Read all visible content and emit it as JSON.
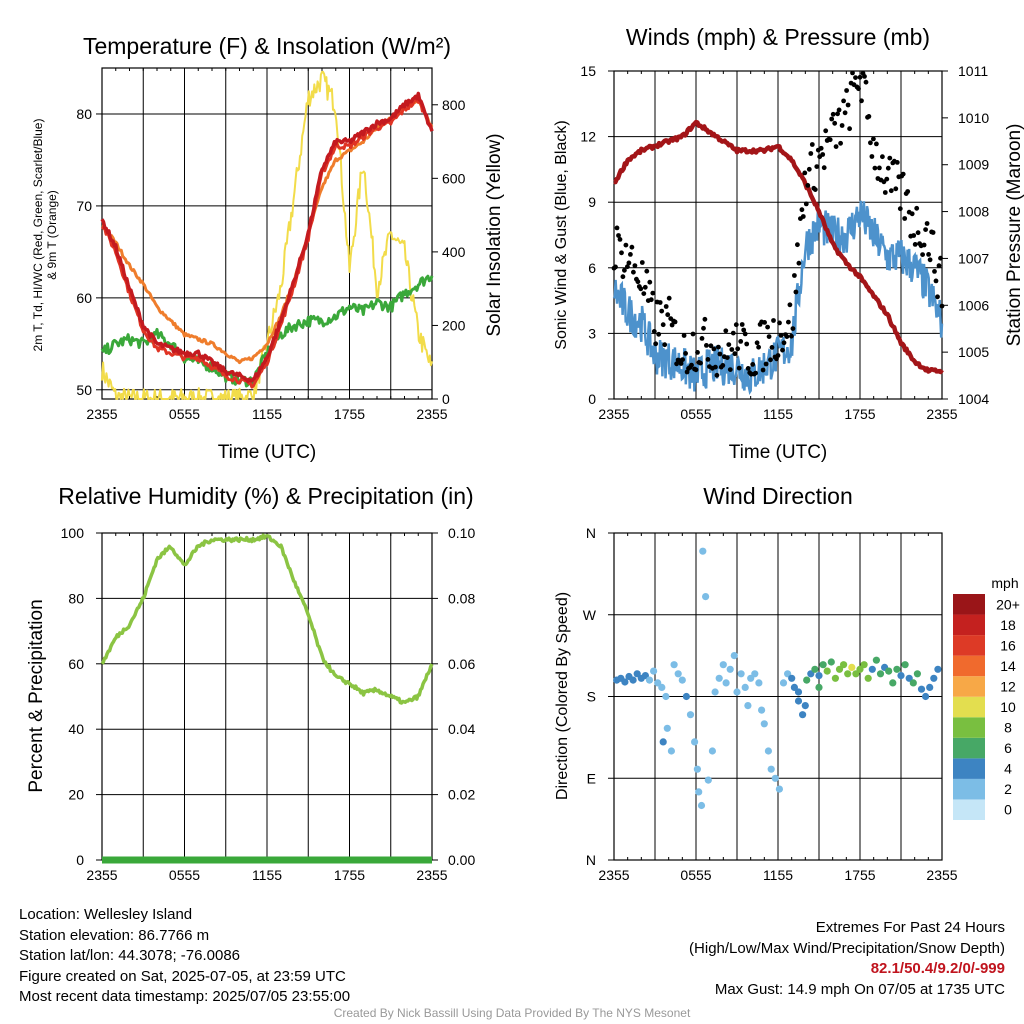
{
  "colors": {
    "t2m": "#c41a1f",
    "twc": "#e03424",
    "t9m": "#ef7d2c",
    "td": "#3aa83a",
    "solar": "#f2dc4a",
    "wind": "#4d92cc",
    "gust": "#000000",
    "pressure": "#a31518",
    "rh": "#8bc443",
    "precip": "#3aa83a"
  },
  "panels": {
    "temp": {
      "title": "Temperature (F) & Insolation (W/m²)",
      "ylabel_left_line1": "2m T, Td, HI/WC (Red, Green, Scarlet/Blue)",
      "ylabel_left_line2": "& 9m T (Orange)",
      "ylabel_right": "Solar Insolation (Yellow)",
      "xlabel": "Time (UTC)",
      "x_ticks": [
        "2355",
        "0555",
        "1155",
        "1755",
        "2355"
      ],
      "y_left_ticks": [
        "50",
        "60",
        "70",
        "80"
      ],
      "y_right_ticks": [
        "0",
        "200",
        "400",
        "600",
        "800"
      ]
    },
    "winds": {
      "title": "Winds (mph) & Pressure (mb)",
      "ylabel_left": "Sonic Wind & Gust (Blue, Black)",
      "ylabel_right": "Station Pressure (Maroon)",
      "xlabel": "Time (UTC)",
      "x_ticks": [
        "2355",
        "0555",
        "1155",
        "1755",
        "2355"
      ],
      "y_left_ticks": [
        "0",
        "3",
        "6",
        "9",
        "12",
        "15"
      ],
      "y_right_ticks": [
        "1004",
        "1005",
        "1006",
        "1007",
        "1008",
        "1009",
        "1010",
        "1011"
      ]
    },
    "rh": {
      "title": "Relative Humidity (%) & Precipitation (in)",
      "ylabel_left": "Percent & Precipitation",
      "x_ticks": [
        "2355",
        "0555",
        "1155",
        "1755",
        "2355"
      ],
      "y_left_ticks": [
        "0",
        "20",
        "40",
        "60",
        "80",
        "100"
      ],
      "y_right_ticks": [
        "0.00",
        "0.02",
        "0.04",
        "0.06",
        "0.08",
        "0.10"
      ]
    },
    "wdir": {
      "title": "Wind Direction",
      "ylabel_left": "Direction (Colored By Speed)",
      "x_ticks": [
        "2355",
        "0555",
        "1155",
        "1755",
        "2355"
      ],
      "y_left_ticks": [
        "N",
        "E",
        "S",
        "W",
        "N"
      ],
      "colorbar_unit": "mph",
      "colorbar_labels": [
        "0",
        "2",
        "4",
        "6",
        "8",
        "10",
        "12",
        "14",
        "16",
        "18",
        "20+"
      ],
      "colorbar_colors": [
        "#c5e6f7",
        "#7cbde6",
        "#3d84c2",
        "#47a866",
        "#79bf40",
        "#e3de4f",
        "#f7a847",
        "#f06a2d",
        "#dd3a26",
        "#c4211f",
        "#9a1518"
      ]
    }
  },
  "footer": {
    "location": "Location: Wellesley Island",
    "elevation": "Station elevation: 86.7766 m",
    "latlon": "Station lat/lon: 44.3078; -76.0086",
    "created": "Figure created on Sat, 2025-07-05, at 23:59 UTC",
    "recent": "Most recent data timestamp: 2025/07/05 23:55:00",
    "extremes_title": "Extremes For Past 24 Hours",
    "extremes_subtitle": "(High/Low/Max Wind/Precipitation/Snow Depth)",
    "extremes_values": "82.1/50.4/9.2/0/-999",
    "max_gust": "Max Gust: 14.9 mph On 07/05 at 1735 UTC",
    "credit": "Created By Nick Bassill Using Data Provided By The NYS Mesonet"
  },
  "chart_data": [
    {
      "type": "line",
      "title": "Temperature (F) & Insolation (W/m²)",
      "xlabel": "Time (UTC)",
      "x": [
        0,
        1,
        2,
        3,
        4,
        5,
        6,
        7,
        8,
        9,
        10,
        11,
        12,
        13,
        14,
        15,
        16,
        17,
        18,
        19,
        20,
        21,
        22,
        23,
        24
      ],
      "xlim": [
        0,
        24
      ],
      "ylim_left": [
        49,
        85
      ],
      "ylim_right": [
        0,
        900
      ],
      "series": [
        {
          "key": "t2m",
          "axis": "left",
          "values": [
            68.5,
            65.5,
            61.0,
            57.0,
            55.0,
            54.5,
            54.0,
            54.0,
            53.0,
            52.0,
            51.5,
            51.0,
            53.5,
            57.5,
            62.0,
            67.0,
            74.0,
            77.0,
            77.0,
            78.0,
            79.0,
            79.5,
            81.0,
            82.0,
            78.0
          ]
        },
        {
          "key": "twc",
          "axis": "left",
          "values": [
            68.0,
            65.0,
            60.5,
            56.5,
            54.5,
            54.0,
            53.5,
            53.5,
            52.5,
            51.5,
            51.0,
            50.5,
            53.0,
            57.0,
            61.5,
            66.5,
            73.5,
            76.5,
            76.5,
            77.5,
            78.5,
            79.0,
            80.5,
            81.5,
            78.5
          ]
        },
        {
          "key": "t9m",
          "axis": "left",
          "values": [
            68.0,
            66.0,
            63.5,
            61.5,
            59.0,
            57.5,
            56.0,
            55.5,
            55.0,
            54.0,
            53.0,
            53.5,
            55.0,
            58.0,
            62.0,
            67.0,
            72.0,
            75.0,
            76.0,
            77.0,
            78.5,
            79.5,
            81.0,
            81.5,
            78.5
          ]
        },
        {
          "key": "td",
          "axis": "left",
          "values": [
            54.0,
            55.0,
            55.5,
            55.0,
            56.0,
            55.0,
            53.5,
            53.0,
            52.5,
            51.5,
            51.0,
            51.0,
            54.0,
            56.0,
            57.0,
            57.5,
            57.5,
            58.0,
            59.0,
            58.5,
            59.5,
            59.0,
            60.5,
            61.5,
            62.5
          ]
        },
        {
          "key": "solar",
          "axis": "right",
          "values": [
            80,
            5,
            0,
            0,
            0,
            0,
            0,
            0,
            0,
            0,
            0,
            10,
            150,
            300,
            560,
            820,
            870,
            800,
            350,
            650,
            300,
            450,
            400,
            180,
            80
          ]
        }
      ]
    },
    {
      "type": "line",
      "title": "Winds (mph) & Pressure (mb)",
      "xlabel": "Time (UTC)",
      "x": [
        0,
        1,
        2,
        3,
        4,
        5,
        6,
        7,
        8,
        9,
        10,
        11,
        12,
        13,
        14,
        15,
        16,
        17,
        18,
        19,
        20,
        21,
        22,
        23,
        24
      ],
      "xlim": [
        0,
        24
      ],
      "ylim_left": [
        0,
        15
      ],
      "ylim_right": [
        1004,
        1011
      ],
      "series": [
        {
          "key": "wind",
          "axis": "left",
          "values": [
            5.0,
            4.0,
            3.5,
            2.0,
            1.8,
            1.5,
            1.0,
            1.5,
            1.5,
            1.5,
            1.0,
            1.5,
            2.0,
            2.5,
            7.0,
            8.0,
            7.5,
            7.5,
            8.5,
            7.5,
            6.5,
            6.5,
            6.0,
            5.0,
            3.5
          ]
        },
        {
          "key": "gust",
          "axis": "left",
          "mark": "scatter",
          "values": [
            7.0,
            6.5,
            5.5,
            3.5,
            3.5,
            2.0,
            2.5,
            2.5,
            2.0,
            2.5,
            2.0,
            2.5,
            3.0,
            3.5,
            10.0,
            11.0,
            12.0,
            13.0,
            14.9,
            11.5,
            10.0,
            9.5,
            8.0,
            7.5,
            5.0
          ]
        },
        {
          "key": "pressure",
          "axis": "right",
          "values": [
            1008.6,
            1009.1,
            1009.3,
            1009.4,
            1009.5,
            1009.6,
            1009.9,
            1009.7,
            1009.5,
            1009.3,
            1009.3,
            1009.3,
            1009.4,
            1009.1,
            1008.6,
            1008.0,
            1007.3,
            1006.9,
            1006.6,
            1006.2,
            1005.8,
            1005.2,
            1004.8,
            1004.6,
            1004.6
          ]
        }
      ]
    },
    {
      "type": "line",
      "title": "Relative Humidity (%) & Precipitation (in)",
      "x": [
        0,
        1,
        2,
        3,
        4,
        5,
        6,
        7,
        8,
        9,
        10,
        11,
        12,
        13,
        14,
        15,
        16,
        17,
        18,
        19,
        20,
        21,
        22,
        23,
        24
      ],
      "xlim": [
        0,
        24
      ],
      "ylim_left": [
        0,
        100
      ],
      "ylim_right": [
        0,
        0.1
      ],
      "series": [
        {
          "key": "rh",
          "axis": "left",
          "values": [
            60,
            68,
            72,
            80,
            92,
            96,
            90,
            96,
            98,
            98,
            98,
            98,
            99,
            96,
            85,
            75,
            62,
            56,
            54,
            51,
            52,
            50,
            48,
            50,
            60
          ]
        },
        {
          "key": "precip",
          "axis": "right",
          "values": [
            0,
            0,
            0,
            0,
            0,
            0,
            0,
            0,
            0,
            0,
            0,
            0,
            0,
            0,
            0,
            0,
            0,
            0,
            0,
            0,
            0,
            0,
            0,
            0,
            0
          ]
        }
      ]
    },
    {
      "type": "scatter",
      "title": "Wind Direction",
      "xlim": [
        0,
        24
      ],
      "ylim": [
        0,
        360
      ],
      "y_tick_values": [
        0,
        90,
        180,
        270,
        360
      ],
      "points": [
        [
          0.2,
          198,
          3
        ],
        [
          0.5,
          200,
          3
        ],
        [
          0.8,
          196,
          4
        ],
        [
          1.1,
          202,
          3
        ],
        [
          1.4,
          198,
          4
        ],
        [
          1.7,
          205,
          3
        ],
        [
          2.0,
          200,
          3
        ],
        [
          2.3,
          203,
          3
        ],
        [
          2.6,
          198,
          2
        ],
        [
          2.9,
          208,
          2
        ],
        [
          3.2,
          195,
          2
        ],
        [
          3.5,
          190,
          2
        ],
        [
          3.8,
          180,
          2
        ],
        [
          3.6,
          130,
          3
        ],
        [
          3.9,
          145,
          2
        ],
        [
          4.2,
          120,
          2
        ],
        [
          4.4,
          215,
          2
        ],
        [
          4.7,
          205,
          2
        ],
        [
          5.0,
          198,
          2
        ],
        [
          5.3,
          180,
          3
        ],
        [
          5.6,
          160,
          2
        ],
        [
          5.9,
          130,
          2
        ],
        [
          6.1,
          100,
          1
        ],
        [
          6.2,
          75,
          1
        ],
        [
          6.4,
          60,
          1
        ],
        [
          6.5,
          340,
          1
        ],
        [
          6.7,
          290,
          1
        ],
        [
          6.9,
          88,
          2
        ],
        [
          7.2,
          120,
          1
        ],
        [
          7.4,
          185,
          1
        ],
        [
          7.7,
          200,
          1
        ],
        [
          8.0,
          215,
          1
        ],
        [
          8.2,
          195,
          2
        ],
        [
          8.5,
          210,
          1
        ],
        [
          8.8,
          225,
          1
        ],
        [
          9.0,
          185,
          1
        ],
        [
          9.3,
          205,
          2
        ],
        [
          9.6,
          190,
          1
        ],
        [
          9.8,
          170,
          2
        ],
        [
          10.0,
          200,
          1
        ],
        [
          10.3,
          205,
          1
        ],
        [
          10.6,
          195,
          2
        ],
        [
          10.8,
          165,
          2
        ],
        [
          11.0,
          150,
          2
        ],
        [
          11.3,
          120,
          2
        ],
        [
          11.5,
          100,
          2
        ],
        [
          11.8,
          90,
          1
        ],
        [
          12.1,
          78,
          2
        ],
        [
          12.4,
          195,
          2
        ],
        [
          12.7,
          205,
          1
        ],
        [
          13.0,
          200,
          3
        ],
        [
          13.2,
          190,
          3
        ],
        [
          13.5,
          175,
          3
        ],
        [
          13.8,
          160,
          4
        ],
        [
          14.1,
          198,
          5
        ],
        [
          14.4,
          205,
          3
        ],
        [
          14.7,
          210,
          5
        ],
        [
          15.0,
          203,
          4
        ],
        [
          15.3,
          215,
          5
        ],
        [
          15.6,
          208,
          7
        ],
        [
          15.9,
          218,
          6
        ],
        [
          16.2,
          200,
          8
        ],
        [
          16.5,
          210,
          7
        ],
        [
          16.8,
          215,
          7
        ],
        [
          17.1,
          205,
          8
        ],
        [
          17.4,
          212,
          9
        ],
        [
          17.7,
          205,
          8
        ],
        [
          18.0,
          210,
          7
        ],
        [
          18.3,
          215,
          7
        ],
        [
          18.6,
          200,
          7
        ],
        [
          18.9,
          210,
          4
        ],
        [
          19.2,
          220,
          5
        ],
        [
          19.5,
          205,
          6
        ],
        [
          19.8,
          212,
          4
        ],
        [
          20.1,
          208,
          5
        ],
        [
          20.4,
          195,
          5
        ],
        [
          20.7,
          210,
          5
        ],
        [
          21.0,
          203,
          4
        ],
        [
          21.3,
          215,
          5
        ],
        [
          21.6,
          200,
          4
        ],
        [
          21.9,
          195,
          5
        ],
        [
          22.2,
          205,
          5
        ],
        [
          22.5,
          188,
          3
        ],
        [
          22.8,
          180,
          4
        ],
        [
          23.1,
          190,
          3
        ],
        [
          23.4,
          200,
          3
        ],
        [
          23.7,
          210,
          3
        ],
        [
          13.5,
          185,
          3
        ],
        [
          14.0,
          170,
          3
        ],
        [
          15.0,
          190,
          5
        ]
      ]
    }
  ]
}
